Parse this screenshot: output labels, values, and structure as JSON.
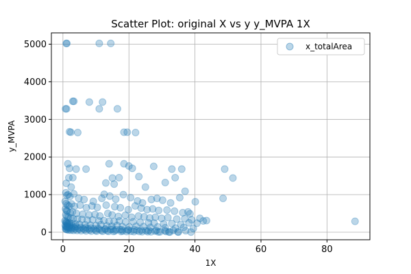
{
  "chart_data": {
    "type": "scatter",
    "title": "Scatter Plot: original X vs y y_MVPA 1X",
    "xlabel": "1X",
    "ylabel": "y_MVPA",
    "xlim": [
      -3.5,
      93
    ],
    "ylim": [
      -200,
      5300
    ],
    "xticks": [
      0,
      20,
      40,
      60,
      80
    ],
    "yticks": [
      0,
      1000,
      2000,
      3000,
      4000,
      5000
    ],
    "grid": true,
    "legend_position": "top-right",
    "colors": {
      "series": "#1f77b4",
      "grid": "#b0b0b0",
      "axis": "#000000"
    },
    "series": [
      {
        "name": "x_totalArea",
        "x": [
          1.0,
          1.2,
          11.0,
          14.5,
          0.8,
          1.1,
          3.0,
          3.3,
          8.0,
          12.0,
          16.5,
          11.0,
          2.0,
          2.4,
          4.5,
          18.5,
          19.5,
          22.0,
          14.0,
          18.5,
          20.0,
          21.0,
          1.5,
          2.0,
          4.0,
          7.0,
          27.5,
          33.0,
          36.0,
          49.0,
          1.8,
          3.0,
          15.0,
          17.0,
          23.0,
          34.0,
          51.5,
          1.0,
          2.5,
          13.0,
          15.5,
          25.0,
          31.0,
          37.0,
          0.9,
          1.2,
          1.6,
          2.1,
          3.3,
          4.8,
          6.4,
          9.2,
          11.8,
          12.5,
          14.2,
          16.0,
          18.3,
          20.5,
          22.6,
          24.1,
          26.8,
          28.5,
          30.2,
          32.6,
          35.4,
          37.9,
          40.1,
          0.7,
          1.0,
          1.4,
          1.9,
          2.6,
          3.5,
          5.2,
          7.1,
          8.8,
          10.4,
          13.1,
          15.7,
          17.4,
          19.8,
          21.9,
          23.7,
          25.5,
          27.2,
          29.0,
          31.5,
          33.8,
          36.3,
          38.5,
          0.8,
          1.1,
          1.3,
          2.2,
          2.9,
          4.1,
          6.0,
          7.9,
          9.7,
          11.2,
          13.6,
          14.9,
          16.8,
          18.9,
          20.8,
          22.9,
          24.6,
          26.3,
          28.0,
          29.9,
          31.8,
          34.5,
          36.9,
          39.0,
          41.5,
          42.5,
          48.5,
          0.9,
          1.2,
          1.6,
          2.3,
          3.1,
          4.4,
          5.8,
          7.4,
          9.0,
          10.9,
          12.4,
          14.0,
          15.5,
          17.1,
          19.0,
          21.3,
          23.4,
          25.9,
          27.6,
          30.5,
          33.0,
          35.7,
          38.2,
          40.6,
          43.5,
          88.5,
          0.6,
          0.9,
          1.1,
          1.5,
          2.0,
          2.7,
          3.8,
          5.0,
          6.7,
          8.3,
          10.0,
          11.5,
          13.3,
          14.8,
          16.4,
          18.0,
          20.1,
          22.2,
          24.4,
          26.5,
          28.7,
          31.0,
          34.1,
          36.6,
          39.5,
          0.7,
          1.0,
          1.3,
          1.8,
          2.5,
          3.4,
          4.6,
          6.2,
          7.6,
          9.4,
          11.0,
          12.7,
          14.5,
          16.1,
          17.9,
          19.6,
          21.6,
          23.8,
          26.0,
          28.3,
          30.9,
          33.4,
          37.2,
          0.8,
          1.0,
          1.2,
          1.7,
          2.4,
          3.2,
          4.3,
          5.5,
          7.0,
          8.6,
          10.2,
          12.0,
          13.8,
          15.3,
          17.6,
          19.3,
          21.5,
          24.0,
          26.7,
          29.4,
          32.1,
          35.0,
          38.8,
          1.0,
          1.4,
          2.0,
          2.8,
          3.9,
          5.4,
          6.9,
          8.5,
          10.6,
          12.9,
          15.1,
          17.3,
          19.9,
          22.4,
          25.2,
          27.9,
          31.2,
          34.8,
          0.9,
          1.3,
          1.9,
          2.6,
          3.6,
          4.9,
          6.5,
          8.1,
          9.9,
          11.6,
          13.4,
          15.8,
          18.1,
          20.6,
          23.1,
          25.7,
          28.9,
          32.4
        ],
        "y": [
          5020,
          5020,
          5020,
          5020,
          3280,
          3280,
          3480,
          3480,
          3460,
          3460,
          3280,
          3280,
          2670,
          2660,
          2650,
          2660,
          2660,
          2650,
          1820,
          1820,
          1760,
          1700,
          1820,
          1700,
          1680,
          1680,
          1750,
          1680,
          1680,
          1680,
          1450,
          1450,
          1440,
          1450,
          1480,
          1450,
          1440,
          1300,
          1200,
          1310,
          1280,
          1200,
          1320,
          1090,
          1050,
          980,
          1000,
          950,
          1020,
          900,
          870,
          820,
          900,
          1010,
          960,
          880,
          1000,
          920,
          830,
          780,
          870,
          900,
          850,
          780,
          920,
          540,
          810,
          820,
          760,
          720,
          700,
          750,
          690,
          720,
          650,
          700,
          660,
          720,
          680,
          650,
          600,
          700,
          640,
          600,
          620,
          580,
          590,
          560,
          520,
          490,
          620,
          580,
          560,
          520,
          540,
          500,
          480,
          460,
          470,
          430,
          500,
          460,
          420,
          450,
          400,
          430,
          410,
          380,
          400,
          370,
          390,
          350,
          360,
          330,
          370,
          300,
          900,
          460,
          420,
          400,
          380,
          360,
          350,
          340,
          320,
          330,
          300,
          310,
          290,
          280,
          300,
          270,
          280,
          260,
          250,
          240,
          220,
          230,
          200,
          250,
          240,
          310,
          290,
          300,
          280,
          260,
          240,
          250,
          230,
          220,
          210,
          200,
          190,
          180,
          200,
          170,
          160,
          180,
          150,
          140,
          160,
          150,
          130,
          140,
          120,
          110,
          130,
          100,
          180,
          160,
          150,
          140,
          130,
          120,
          110,
          100,
          95,
          90,
          85,
          80,
          75,
          70,
          65,
          60,
          70,
          55,
          50,
          45,
          40,
          50,
          40,
          90,
          80,
          70,
          60,
          55,
          50,
          45,
          40,
          35,
          30,
          28,
          26,
          24,
          22,
          20,
          18,
          16,
          14,
          12,
          10,
          8,
          6,
          5,
          240,
          210,
          190,
          170,
          150,
          130,
          120,
          110,
          100,
          90,
          80,
          70,
          60,
          50,
          40,
          30,
          20,
          10,
          140,
          120,
          110,
          100,
          90,
          80,
          70,
          60,
          50,
          45,
          40,
          35,
          30,
          25,
          20,
          15,
          10,
          5
        ]
      }
    ]
  }
}
